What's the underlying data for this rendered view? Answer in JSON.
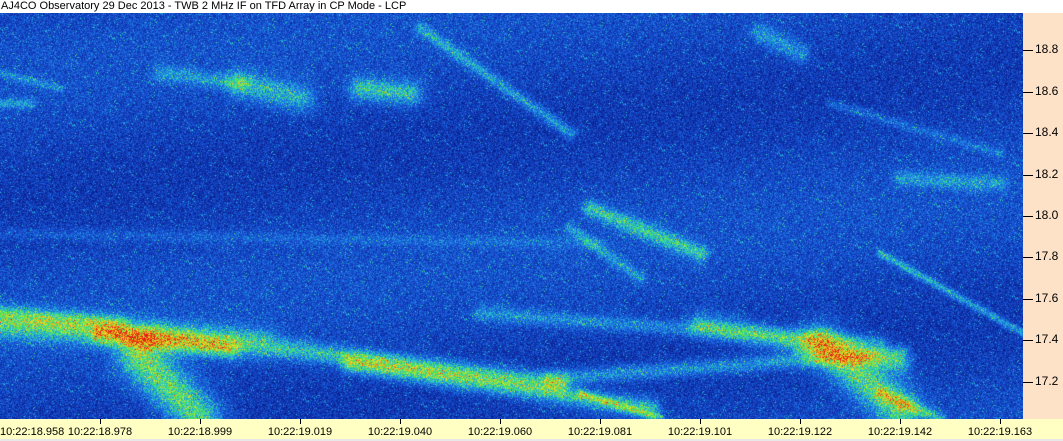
{
  "title": "AJ4CO Observatory 29 Dec 2013 - TWB 2 MHz IF on TFD Array in CP Mode - LCP",
  "chart_data": {
    "type": "heatmap",
    "title": "AJ4CO Observatory 29 Dec 2013 - TWB 2 MHz IF on TFD Array in CP Mode - LCP",
    "xlabel": "",
    "ylabel": "",
    "x_tick_labels": [
      "10:22:18.958",
      "10:22:18.978",
      "10:22:18.999",
      "10:22:19.019",
      "10:22:19.040",
      "10:22:19.060",
      "10:22:19.081",
      "10:22:19.101",
      "10:22:19.122",
      "10:22:19.142",
      "10:22:19.163"
    ],
    "y_ticks": [
      18.8,
      18.6,
      18.4,
      18.2,
      18.0,
      17.8,
      17.6,
      17.4,
      17.2
    ],
    "y_tick_labels": [
      "18.8",
      "18.6",
      "18.4",
      "18.2",
      "18.0",
      "17.8",
      "17.6",
      "17.4",
      "17.2"
    ],
    "ylim": [
      17.02,
      18.98
    ],
    "y_axis_position": "right",
    "colormap": [
      "#0a1e8c",
      "#1446c8",
      "#1e78e6",
      "#28c8c8",
      "#50e650",
      "#e6e628",
      "#f08c14",
      "#e61e14"
    ],
    "grid": false
  },
  "colors": {
    "y_axis_bg": "#fde2c8",
    "x_axis_bg": "#ffffc4"
  }
}
